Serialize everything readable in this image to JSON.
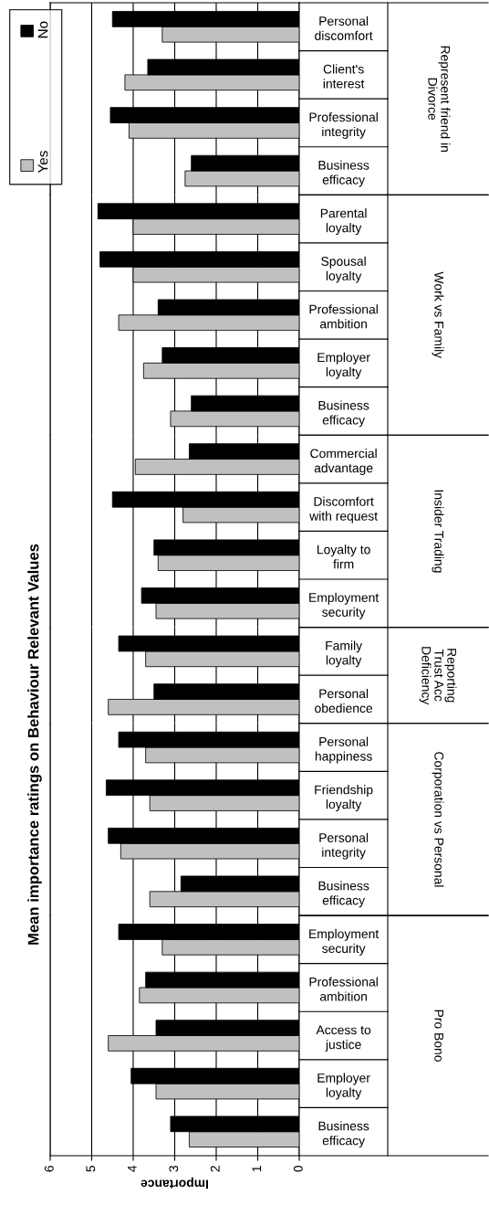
{
  "chart_data": [
    {
      "type": "bar",
      "orientation": "horizontal",
      "title": "Mean importance ratings on Behaviour Relevant Values",
      "annotations": [
        "Represent friend in\nDivorce"
      ],
      "categories": [
        "Personal\ndiscomfort",
        "Client's\ninterest",
        "Professional\nintegrity",
        "Business\nefficacy"
      ],
      "series": [
        {
          "name": "Yes",
          "color": "#c0c0c0",
          "values": [
            3.3,
            4.2,
            4.1,
            2.75
          ]
        },
        {
          "name": "No",
          "color": "#000000",
          "values": [
            4.5,
            3.65,
            4.55,
            2.6
          ]
        }
      ],
      "xlim": [
        6,
        0
      ],
      "grid": "x",
      "legend": "top left",
      "tick_labels": "y"
    },
    {
      "type": "bar",
      "orientation": "horizontal",
      "annotations": [
        "Work vs Family"
      ],
      "categories": [
        "Parental\nloyalty",
        "Spousal\nloyalty",
        "Professional\nambition",
        "Employer\nloyalty",
        "Business\nefficacy"
      ],
      "series": [
        {
          "color": "#c0c0c0",
          "values": [
            4.0,
            4.0,
            4.35,
            3.75,
            3.1
          ]
        },
        {
          "color": "#000000",
          "values": [
            4.85,
            4.8,
            3.4,
            3.3,
            2.6
          ]
        }
      ],
      "xlim": [
        6,
        0
      ],
      "grid": "x",
      "tick_labels": "y"
    },
    {
      "type": "bar",
      "orientation": "horizontal",
      "annotations": [
        "Insider Trading"
      ],
      "categories": [
        "Commercial\nadvantage",
        "Discomfort\nwith request",
        "Loyalty to\nfirm",
        "Employment\nsecurity"
      ],
      "series": [
        {
          "color": "#c0c0c0",
          "values": [
            3.95,
            2.8,
            3.4,
            3.45
          ]
        },
        {
          "color": "#000000",
          "values": [
            2.65,
            4.5,
            3.5,
            3.8
          ]
        }
      ],
      "xlim": [
        6,
        0
      ],
      "grid": "x",
      "tick_labels": "y"
    },
    {
      "type": "bar",
      "orientation": "horizontal",
      "annotations": [
        "Reporting\nTrust Acc\nDeficiency"
      ],
      "categories": [
        "Family\nloyalty",
        "Personal\nobedience"
      ],
      "series": [
        {
          "color": "#c0c0c0",
          "values": [
            3.7,
            4.6
          ]
        },
        {
          "color": "#000000",
          "values": [
            4.35,
            3.5
          ]
        }
      ],
      "xlim": [
        6,
        0
      ],
      "grid": "x",
      "tick_labels": "y"
    },
    {
      "type": "bar",
      "orientation": "horizontal",
      "annotations": [
        "Corporation vs Personal"
      ],
      "categories": [
        "Personal\nhappiness",
        "Friendship\nloyalty",
        "Personal\nintegrity",
        "Business\nefficacy"
      ],
      "series": [
        {
          "color": "#c0c0c0",
          "values": [
            3.7,
            3.6,
            4.3,
            3.6
          ]
        },
        {
          "color": "#000000",
          "values": [
            4.35,
            4.65,
            4.6,
            2.85
          ]
        }
      ],
      "xlim": [
        6,
        0
      ],
      "grid": "x",
      "tick_labels": "y"
    },
    {
      "type": "bar",
      "orientation": "horizontal",
      "annotations": [
        "Pro Bono"
      ],
      "xlabel": "Importance",
      "categories": [
        "Employment\nsecurity",
        "Professional\nambition",
        "Access to\njustice",
        "Employer\nloyalty",
        "Business\nefficacy"
      ],
      "series": [
        {
          "color": "#c0c0c0",
          "values": [
            3.3,
            3.85,
            4.6,
            3.45,
            2.65
          ]
        },
        {
          "color": "#000000",
          "values": [
            4.35,
            3.7,
            3.45,
            4.05,
            3.1
          ]
        }
      ],
      "xlim": [
        6,
        0
      ],
      "xticks": [
        0,
        1,
        2,
        3,
        4,
        5,
        6
      ],
      "grid": "x"
    }
  ]
}
